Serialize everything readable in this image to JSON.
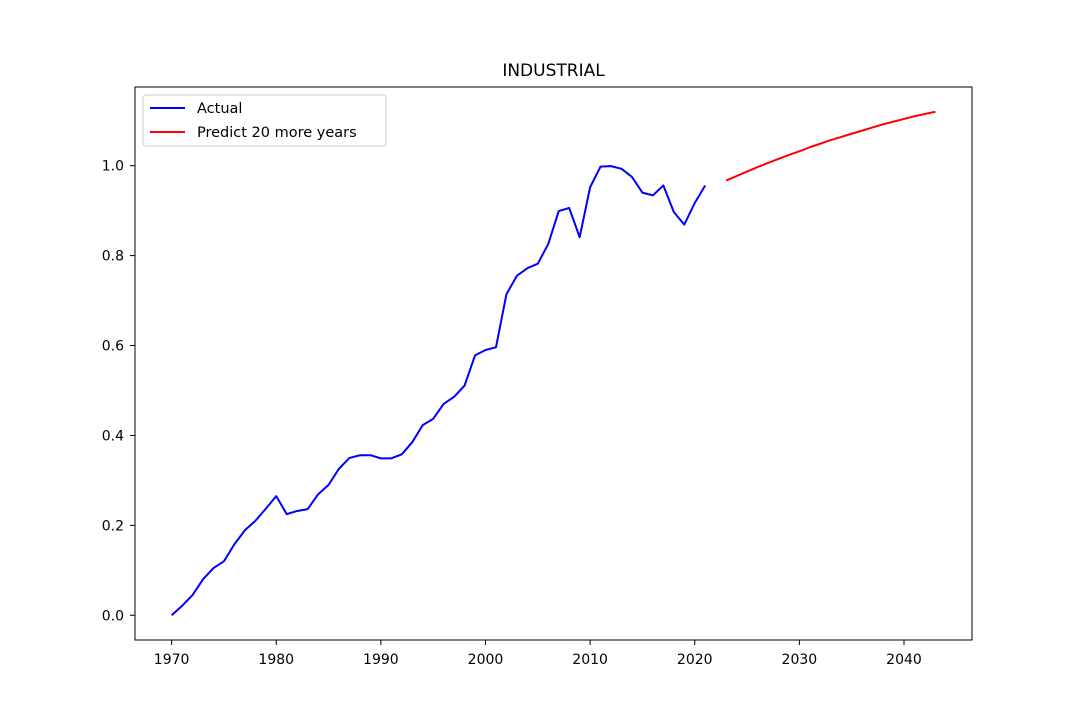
{
  "chart_data": {
    "type": "line",
    "title": "INDUSTRIAL",
    "xlabel": "",
    "ylabel": "",
    "xlim": [
      1966.5,
      2046.5
    ],
    "ylim": [
      -0.055,
      1.175
    ],
    "xticks": [
      1970,
      1980,
      1990,
      2000,
      2010,
      2020,
      2030,
      2040
    ],
    "yticks": [
      0.0,
      0.2,
      0.4,
      0.6,
      0.8,
      1.0
    ],
    "ytick_labels": [
      "0.0",
      "0.2",
      "0.4",
      "0.6",
      "0.8",
      "1.0"
    ],
    "grid": false,
    "legend_position": "top-left",
    "series": [
      {
        "name": "Actual",
        "color": "#0000ff",
        "x": [
          1970,
          1971,
          1972,
          1973,
          1974,
          1975,
          1976,
          1977,
          1978,
          1979,
          1980,
          1981,
          1982,
          1983,
          1984,
          1985,
          1986,
          1987,
          1988,
          1989,
          1990,
          1991,
          1992,
          1993,
          1994,
          1995,
          1996,
          1997,
          1998,
          1999,
          2000,
          2001,
          2002,
          2003,
          2004,
          2005,
          2006,
          2007,
          2008,
          2009,
          2010,
          2011,
          2012,
          2013,
          2014,
          2015,
          2016,
          2017,
          2018,
          2019,
          2020,
          2021
        ],
        "y": [
          0.0,
          0.021,
          0.045,
          0.08,
          0.105,
          0.12,
          0.158,
          0.189,
          0.21,
          0.237,
          0.265,
          0.225,
          0.232,
          0.236,
          0.269,
          0.29,
          0.326,
          0.35,
          0.356,
          0.356,
          0.349,
          0.349,
          0.358,
          0.385,
          0.423,
          0.437,
          0.47,
          0.486,
          0.511,
          0.578,
          0.59,
          0.596,
          0.714,
          0.755,
          0.772,
          0.782,
          0.826,
          0.899,
          0.906,
          0.841,
          0.952,
          0.998,
          0.999,
          0.993,
          0.975,
          0.94,
          0.934,
          0.956,
          0.897,
          0.869,
          0.917,
          0.956
        ]
      },
      {
        "name": "Predict 20 more years",
        "color": "#ff0000",
        "x": [
          2023,
          2024,
          2025,
          2026,
          2027,
          2028,
          2029,
          2030,
          2031,
          2032,
          2033,
          2034,
          2035,
          2036,
          2037,
          2038,
          2039,
          2040,
          2041,
          2042,
          2043
        ],
        "y": [
          0.967,
          0.977,
          0.987,
          0.997,
          1.006,
          1.015,
          1.024,
          1.032,
          1.041,
          1.049,
          1.057,
          1.064,
          1.071,
          1.078,
          1.085,
          1.092,
          1.098,
          1.104,
          1.11,
          1.115,
          1.12
        ]
      }
    ]
  }
}
